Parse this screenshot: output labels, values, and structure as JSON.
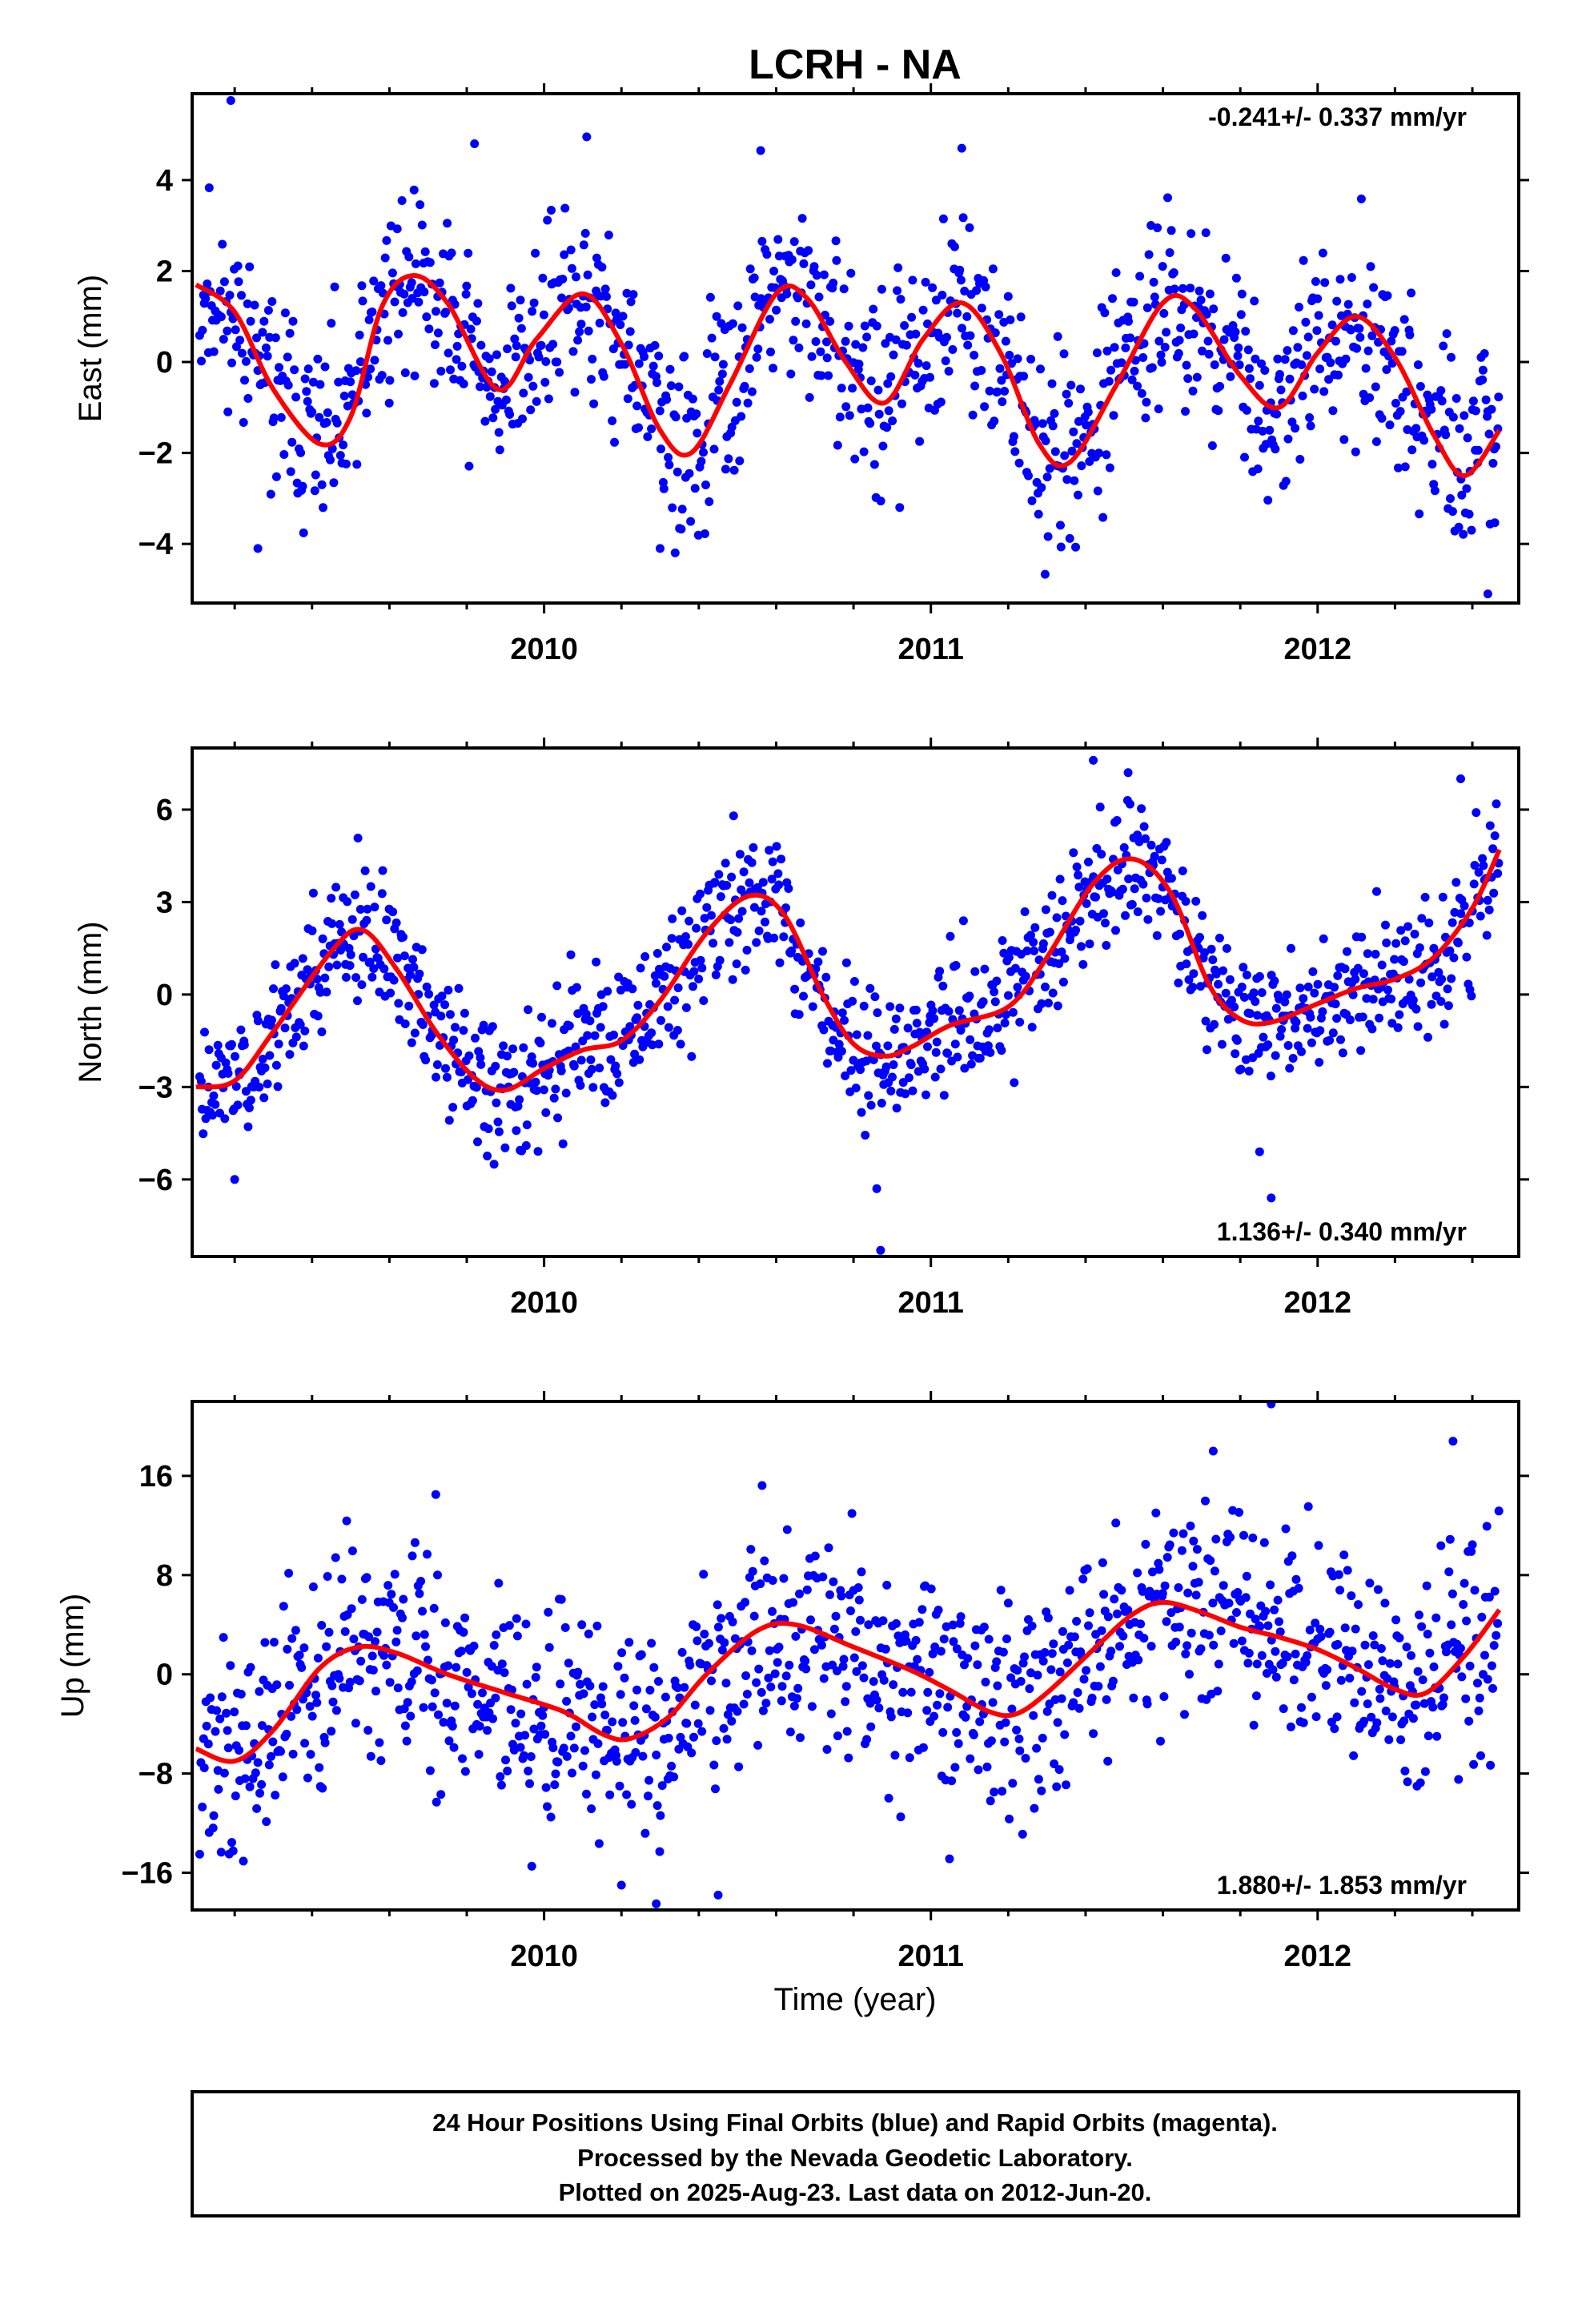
{
  "title": "LCRH - NA",
  "colors": {
    "final_orbits": "#0000ff",
    "model": "#ff0000",
    "frame": "#000000"
  },
  "xaxis": {
    "label": "Time (year)",
    "range": [
      2009.09,
      2012.52
    ],
    "major_ticks": [
      2010,
      2011,
      2012
    ],
    "minor_ticks": [
      2009.2,
      2009.4,
      2009.6,
      2009.8,
      2010.2,
      2010.4,
      2010.6,
      2010.8,
      2011.2,
      2011.4,
      2011.6,
      2011.8,
      2012.2,
      2012.4
    ]
  },
  "chart_data": [
    {
      "type": "scatter",
      "component": "East",
      "ylabel": "East (mm)",
      "ylim": [
        -5.3,
        5.9
      ],
      "yticks": [
        -4,
        -2,
        0,
        2,
        4
      ],
      "rate": "-0.241+/- 0.337 mm/yr",
      "rate_position": "top-right",
      "noise": 1.05,
      "seed": 11,
      "outliers": [
        [
          2009.19,
          5.75
        ],
        [
          2010.11,
          4.95
        ],
        [
          2010.56,
          4.65
        ],
        [
          2011.08,
          4.7
        ],
        [
          2009.82,
          4.8
        ],
        [
          2012.44,
          -5.1
        ],
        [
          2009.26,
          -4.1
        ],
        [
          2010.3,
          -4.1
        ]
      ],
      "model": [
        [
          2009.1,
          1.7
        ],
        [
          2009.2,
          1.1
        ],
        [
          2009.3,
          -0.6
        ],
        [
          2009.42,
          -1.8
        ],
        [
          2009.5,
          -1.2
        ],
        [
          2009.58,
          1.2
        ],
        [
          2009.66,
          1.9
        ],
        [
          2009.75,
          1.3
        ],
        [
          2009.88,
          -0.6
        ],
        [
          2009.98,
          0.5
        ],
        [
          2010.1,
          1.5
        ],
        [
          2010.2,
          0.4
        ],
        [
          2010.3,
          -1.5
        ],
        [
          2010.38,
          -2.0
        ],
        [
          2010.48,
          -0.5
        ],
        [
          2010.6,
          1.5
        ],
        [
          2010.68,
          1.4
        ],
        [
          2010.78,
          0.0
        ],
        [
          2010.88,
          -0.9
        ],
        [
          2010.98,
          0.5
        ],
        [
          2011.08,
          1.3
        ],
        [
          2011.18,
          0.2
        ],
        [
          2011.28,
          -1.8
        ],
        [
          2011.36,
          -2.2
        ],
        [
          2011.48,
          -0.5
        ],
        [
          2011.6,
          1.3
        ],
        [
          2011.68,
          1.2
        ],
        [
          2011.8,
          -0.3
        ],
        [
          2011.9,
          -1.0
        ],
        [
          2012.0,
          0.2
        ],
        [
          2012.1,
          1.0
        ],
        [
          2012.2,
          0.1
        ],
        [
          2012.3,
          -1.6
        ],
        [
          2012.38,
          -2.5
        ],
        [
          2012.47,
          -1.5
        ]
      ]
    },
    {
      "type": "scatter",
      "component": "North",
      "ylabel": "North (mm)",
      "ylim": [
        -8.5,
        8.0
      ],
      "yticks": [
        -6,
        -3,
        0,
        3,
        6
      ],
      "rate": "1.136+/- 0.340 mm/yr",
      "rate_position": "bottom-right",
      "noise": 1.1,
      "seed": 23,
      "outliers": [
        [
          2011.42,
          7.6
        ],
        [
          2012.37,
          7.0
        ],
        [
          2011.51,
          7.2
        ],
        [
          2010.49,
          5.8
        ],
        [
          2010.87,
          -8.3
        ],
        [
          2011.88,
          -6.6
        ],
        [
          2009.2,
          -6.0
        ],
        [
          2010.86,
          -6.3
        ],
        [
          2011.85,
          -5.1
        ]
      ],
      "model": [
        [
          2009.1,
          -3.0
        ],
        [
          2009.2,
          -2.8
        ],
        [
          2009.3,
          -1.2
        ],
        [
          2009.45,
          1.4
        ],
        [
          2009.53,
          2.1
        ],
        [
          2009.62,
          0.8
        ],
        [
          2009.72,
          -1.2
        ],
        [
          2009.82,
          -2.7
        ],
        [
          2009.9,
          -3.1
        ],
        [
          2010.0,
          -2.4
        ],
        [
          2010.1,
          -1.8
        ],
        [
          2010.2,
          -1.5
        ],
        [
          2010.3,
          -0.2
        ],
        [
          2010.42,
          2.0
        ],
        [
          2010.53,
          3.2
        ],
        [
          2010.62,
          2.6
        ],
        [
          2010.72,
          0.0
        ],
        [
          2010.8,
          -1.6
        ],
        [
          2010.88,
          -2.0
        ],
        [
          2010.95,
          -1.7
        ],
        [
          2011.05,
          -1.0
        ],
        [
          2011.2,
          -0.4
        ],
        [
          2011.3,
          1.2
        ],
        [
          2011.42,
          3.6
        ],
        [
          2011.52,
          4.4
        ],
        [
          2011.62,
          3.3
        ],
        [
          2011.72,
          0.3
        ],
        [
          2011.8,
          -0.8
        ],
        [
          2011.88,
          -0.9
        ],
        [
          2012.0,
          -0.3
        ],
        [
          2012.1,
          0.2
        ],
        [
          2012.2,
          0.5
        ],
        [
          2012.3,
          1.2
        ],
        [
          2012.4,
          2.8
        ],
        [
          2012.47,
          4.7
        ]
      ]
    },
    {
      "type": "scatter",
      "component": "Up",
      "ylabel": "Up (mm)",
      "ylim": [
        -19.0,
        22.0
      ],
      "yticks": [
        -16,
        -8,
        0,
        8,
        16
      ],
      "rate": "1.880+/- 1.853 mm/yr",
      "rate_position": "bottom-right",
      "noise": 4.3,
      "seed": 37,
      "outliers": [
        [
          2011.88,
          21.8
        ],
        [
          2012.35,
          18.8
        ],
        [
          2011.73,
          18.0
        ],
        [
          2010.29,
          -18.5
        ],
        [
          2010.45,
          -17.8
        ],
        [
          2009.72,
          14.5
        ],
        [
          2010.2,
          -17.0
        ]
      ],
      "model": [
        [
          2009.1,
          -6.0
        ],
        [
          2009.2,
          -7.0
        ],
        [
          2009.3,
          -4.5
        ],
        [
          2009.42,
          0.5
        ],
        [
          2009.52,
          2.2
        ],
        [
          2009.62,
          1.7
        ],
        [
          2009.75,
          0.0
        ],
        [
          2009.9,
          -1.5
        ],
        [
          2010.05,
          -3.0
        ],
        [
          2010.15,
          -4.8
        ],
        [
          2010.22,
          -5.2
        ],
        [
          2010.32,
          -3.5
        ],
        [
          2010.42,
          0.0
        ],
        [
          2010.55,
          3.5
        ],
        [
          2010.65,
          4.0
        ],
        [
          2010.8,
          2.2
        ],
        [
          2010.95,
          0.3
        ],
        [
          2011.05,
          -1.3
        ],
        [
          2011.15,
          -3.0
        ],
        [
          2011.22,
          -3.2
        ],
        [
          2011.3,
          -1.5
        ],
        [
          2011.42,
          2.0
        ],
        [
          2011.52,
          4.8
        ],
        [
          2011.6,
          5.8
        ],
        [
          2011.7,
          5.0
        ],
        [
          2011.8,
          3.8
        ],
        [
          2011.9,
          3.0
        ],
        [
          2012.0,
          2.0
        ],
        [
          2012.1,
          0.5
        ],
        [
          2012.2,
          -1.2
        ],
        [
          2012.28,
          -1.5
        ],
        [
          2012.38,
          1.5
        ],
        [
          2012.47,
          5.2
        ]
      ]
    }
  ],
  "footer": {
    "line1": "24 Hour Positions Using Final Orbits (blue) and Rapid Orbits (magenta).",
    "line2": "Processed by the Nevada Geodetic Laboratory.",
    "line3": "Plotted on 2025-Aug-23. Last data on 2012-Jun-20."
  }
}
